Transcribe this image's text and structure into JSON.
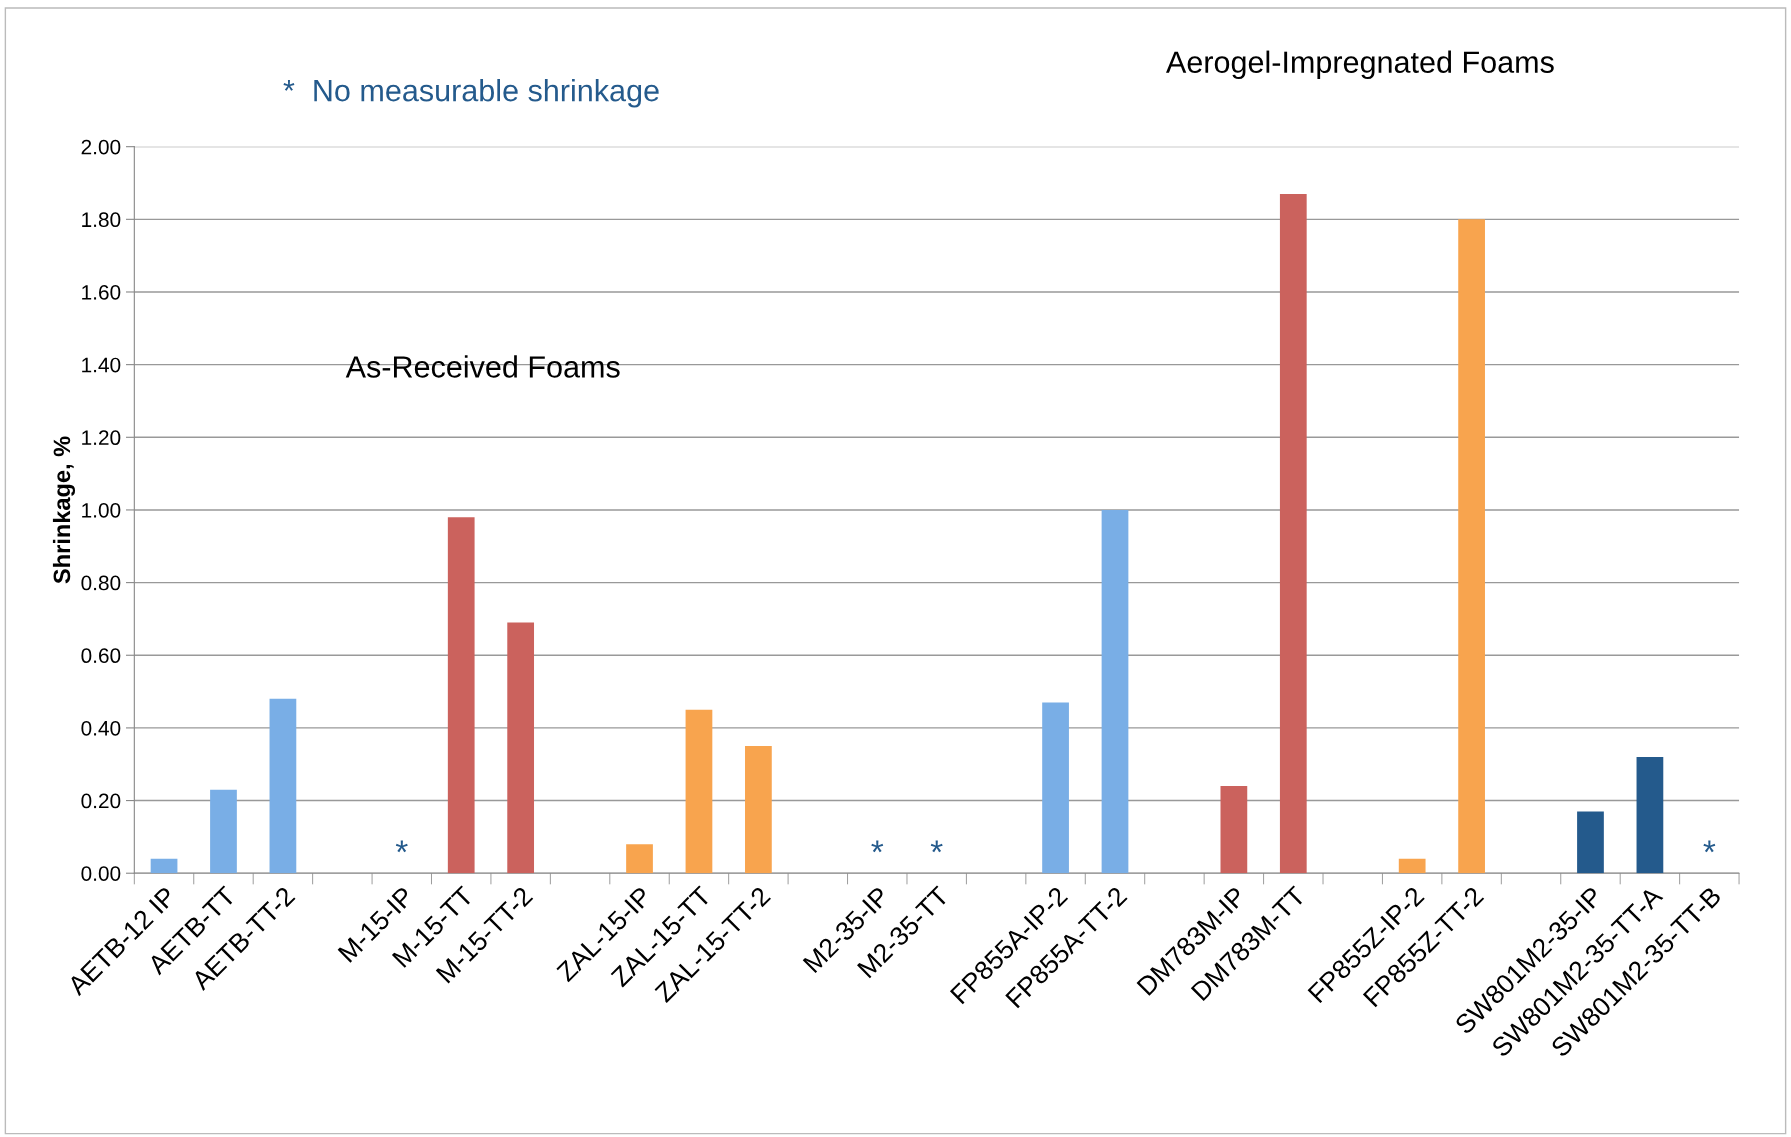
{
  "chart_data": {
    "type": "bar",
    "ylabel": "Shrinkage, %",
    "categories": [
      "AETB-12 IP",
      "AETB-TT",
      "AETB-TT-2",
      null,
      "M-15-IP",
      "M-15-TT",
      "M-15-TT-2",
      null,
      "ZAL-15-IP",
      "ZAL-15-TT",
      "ZAL-15-TT-2",
      null,
      "M2-35-IP",
      "M2-35-TT",
      null,
      "FP855A-IP-2",
      "FP855A-TT-2",
      null,
      "DM783M-IP",
      "DM783M-TT",
      null,
      "FP855Z-IP-2",
      "FP855Z-TT-2",
      null,
      "SW801M2-35-IP",
      "SW801M2-35-TT-A",
      "SW801M2-35-TT-B"
    ],
    "values": [
      0.04,
      0.23,
      0.48,
      null,
      0,
      0.98,
      0.69,
      null,
      0.08,
      0.45,
      0.35,
      null,
      0,
      0,
      null,
      0.47,
      1.0,
      null,
      0.24,
      1.87,
      null,
      0.04,
      1.8,
      null,
      0.17,
      0.32,
      0
    ],
    "colors": [
      "#79aee6",
      "#79aee6",
      "#79aee6",
      null,
      "#cb625d",
      "#cb625d",
      "#cb625d",
      null,
      "#f8a44e",
      "#f8a44e",
      "#f8a44e",
      null,
      "#79aee6",
      "#79aee6",
      null,
      "#79aee6",
      "#79aee6",
      null,
      "#cb625d",
      "#cb625d",
      null,
      "#f8a44e",
      "#f8a44e",
      null,
      "#245a8c",
      "#245a8c",
      "#245a8c"
    ],
    "ylim": [
      0,
      2.0
    ],
    "yticks": [
      {
        "value": 0,
        "label": "0.00"
      },
      {
        "value": 0.2,
        "label": "0.20"
      },
      {
        "value": 0.4,
        "label": "0.40"
      },
      {
        "value": 0.6,
        "label": "0.60"
      },
      {
        "value": 0.8,
        "label": "0.80"
      },
      {
        "value": 1.0,
        "label": "1.00"
      },
      {
        "value": 1.2,
        "label": "1.20"
      },
      {
        "value": 1.4,
        "label": "1.40"
      },
      {
        "value": 1.6,
        "label": "1.60"
      },
      {
        "value": 1.8,
        "label": "1.80"
      },
      {
        "value": 2.0,
        "label": "2.00"
      }
    ],
    "grid": "y",
    "legend": false,
    "annotations": [
      "*  No measurable shrinkage",
      "As-Received Foams",
      "Aerogel-Impregnated Foams",
      {
        "text": "*",
        "x": "M-15-IP",
        "y": 0
      },
      {
        "text": "*",
        "x": "M2-35-IP",
        "y": 0
      },
      {
        "text": "*",
        "x": "M2-35-TT",
        "y": 0
      },
      {
        "text": "*",
        "x": "SW801M2-35-TT-B",
        "y": 0
      }
    ]
  }
}
